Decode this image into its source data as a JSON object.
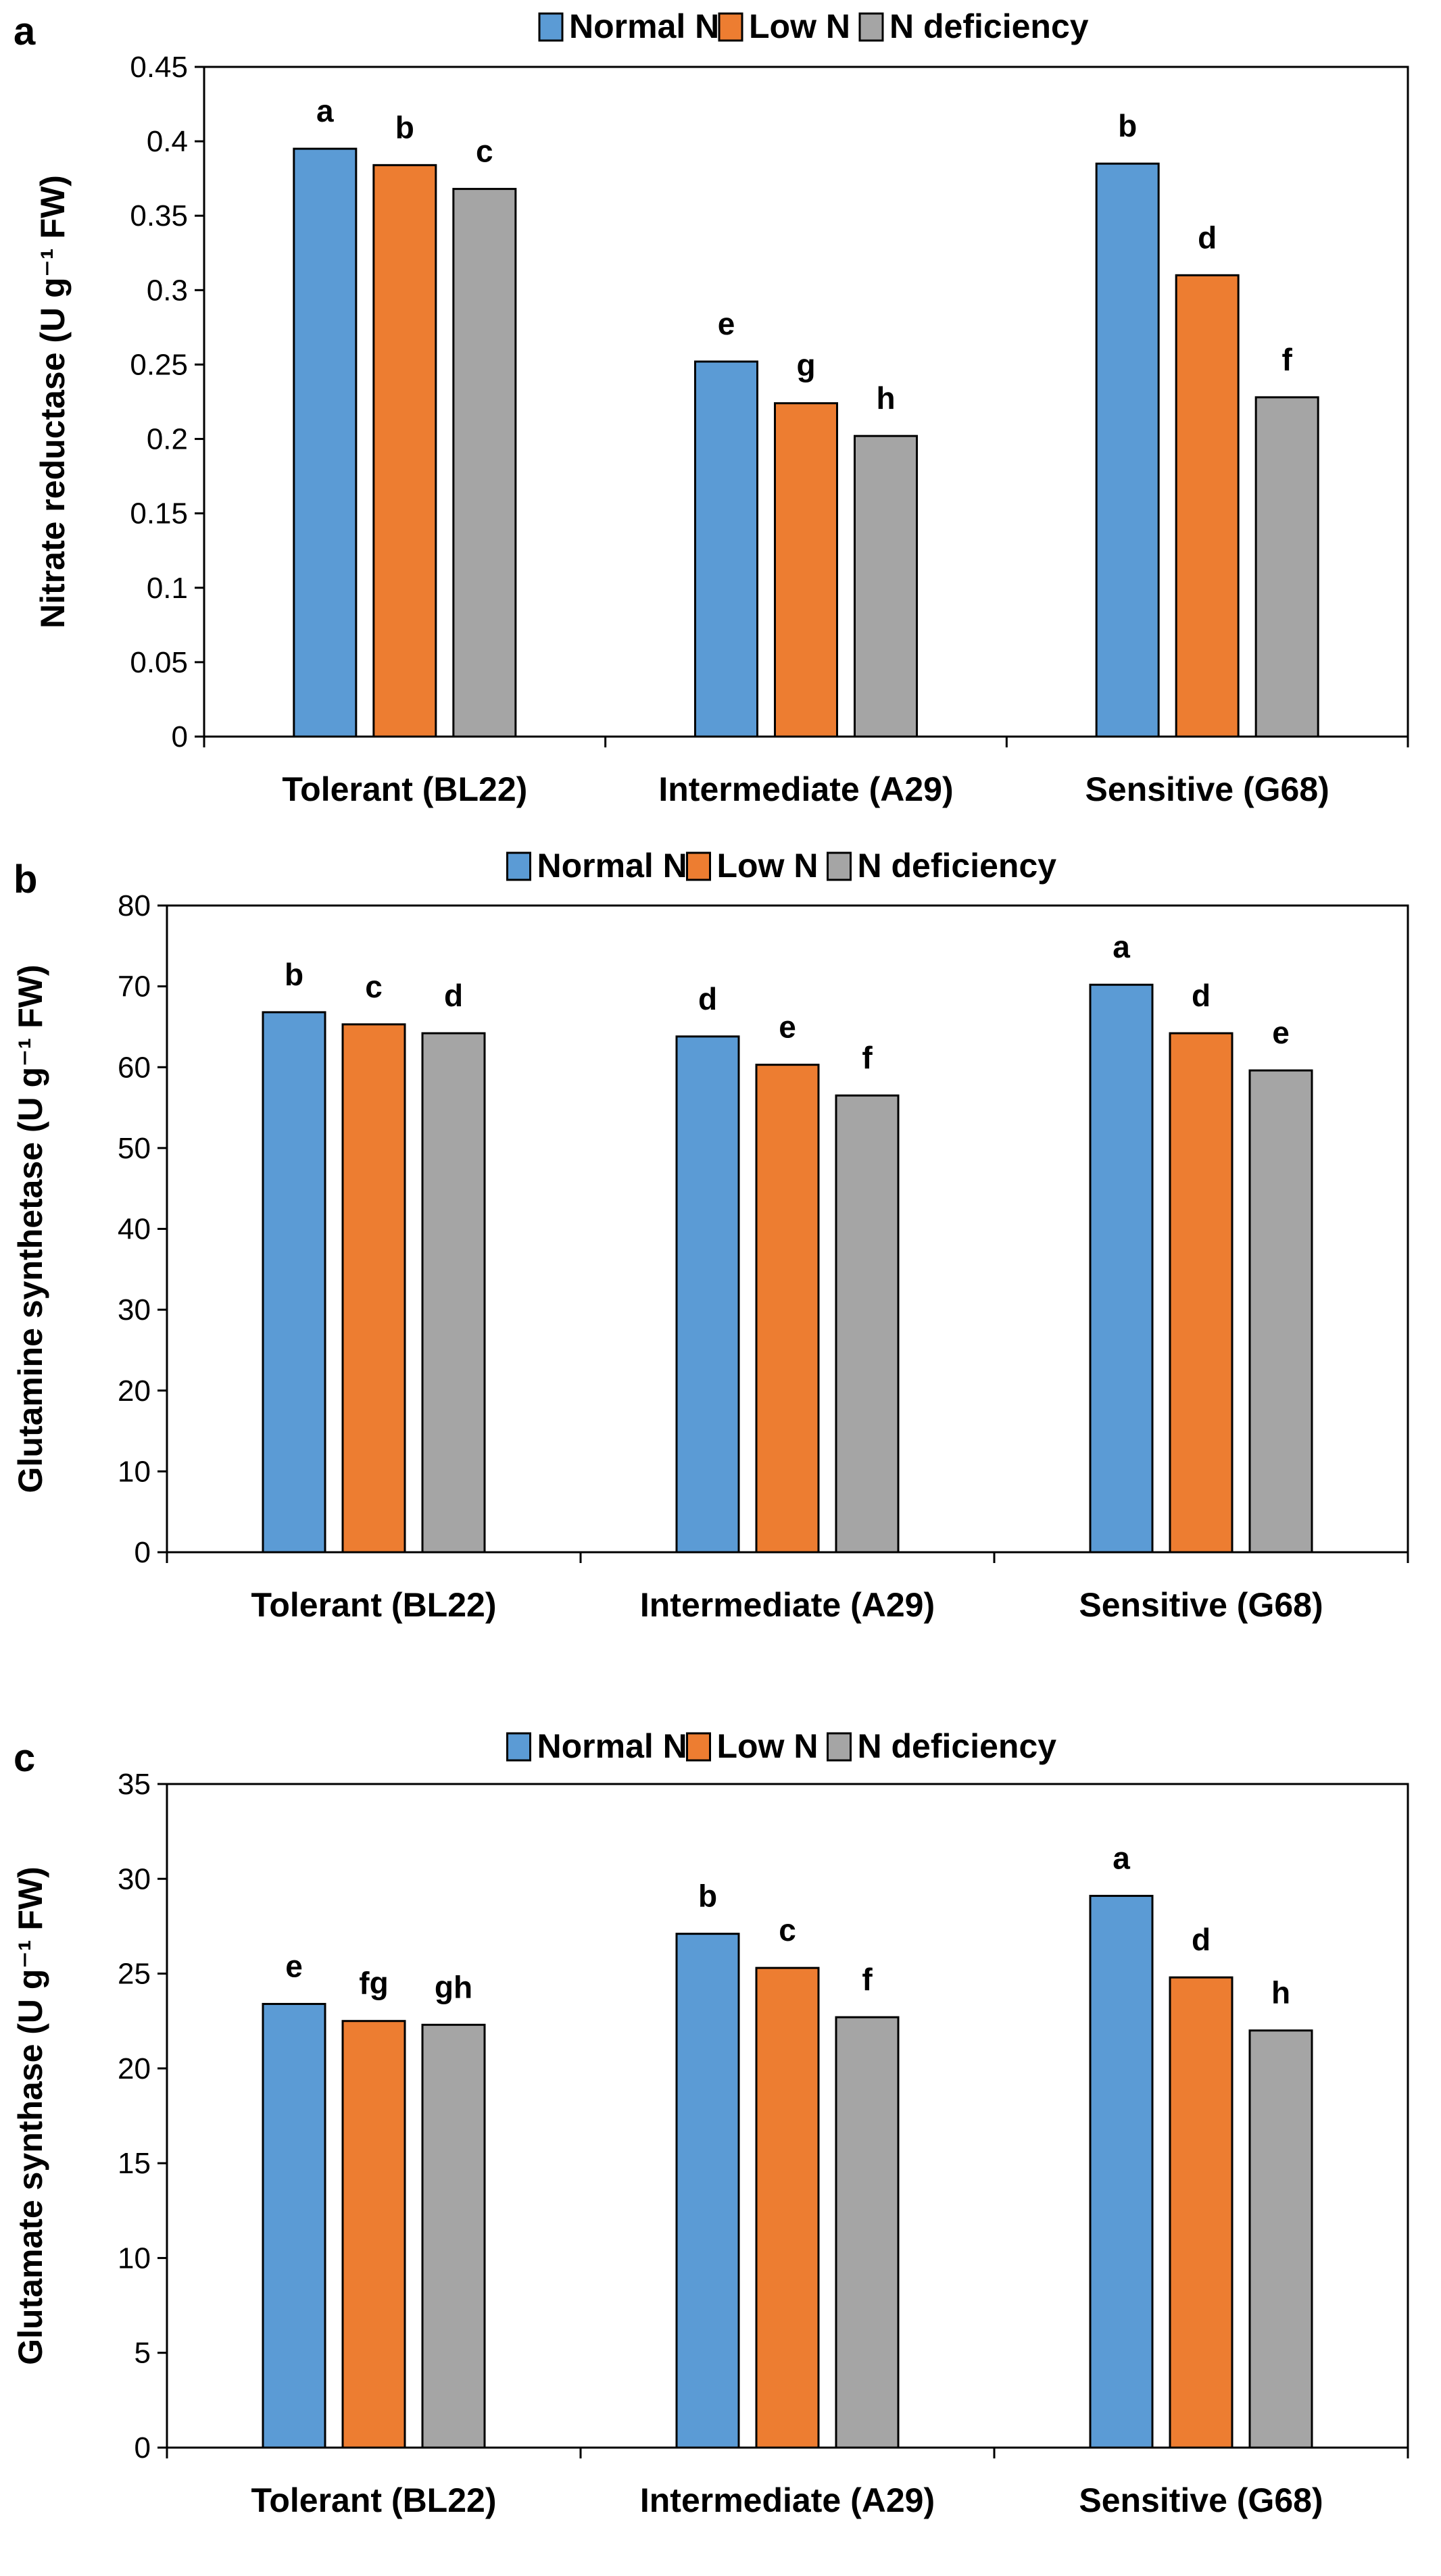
{
  "legend": [
    "Normal N",
    "Low N",
    "N deficiency"
  ],
  "colors": {
    "series": [
      "#5B9BD5",
      "#ED7D31",
      "#A5A5A5"
    ],
    "outline": "#000000",
    "axis": "#000000"
  },
  "chart_data": [
    {
      "panel_label": "a",
      "type": "bar",
      "categories": [
        "Tolerant (BL22)",
        "Intermediate (A29)",
        "Sensitive (G68)"
      ],
      "series": [
        {
          "name": "Normal N",
          "values": [
            0.395,
            0.252,
            0.385
          ],
          "letters": [
            "a",
            "e",
            "b"
          ]
        },
        {
          "name": "Low N",
          "values": [
            0.384,
            0.224,
            0.31
          ],
          "letters": [
            "b",
            "g",
            "d"
          ]
        },
        {
          "name": "N deficiency",
          "values": [
            0.368,
            0.202,
            0.228
          ],
          "letters": [
            "c",
            "h",
            "f"
          ]
        }
      ],
      "ylabel": "Nitrate reductase (U g⁻¹ FW)",
      "xlabel": "",
      "ylim": [
        0,
        0.45
      ],
      "yticks": [
        "0",
        "0.05",
        "0.1",
        "0.15",
        "0.2",
        "0.25",
        "0.3",
        "0.35",
        "0.4",
        "0.45"
      ],
      "legend_position": "top"
    },
    {
      "panel_label": "b",
      "type": "bar",
      "categories": [
        "Tolerant (BL22)",
        "Intermediate (A29)",
        "Sensitive (G68)"
      ],
      "series": [
        {
          "name": "Normal N",
          "values": [
            66.8,
            63.8,
            70.2
          ],
          "letters": [
            "b",
            "d",
            "a"
          ]
        },
        {
          "name": "Low N",
          "values": [
            65.3,
            60.3,
            64.2
          ],
          "letters": [
            "c",
            "e",
            "d"
          ]
        },
        {
          "name": "N deficiency",
          "values": [
            64.2,
            56.5,
            59.6
          ],
          "letters": [
            "d",
            "f",
            "e"
          ]
        }
      ],
      "ylabel": "Glutamine synthetase (U g⁻¹ FW)",
      "xlabel": "",
      "ylim": [
        0,
        80
      ],
      "yticks": [
        "0",
        "10",
        "20",
        "30",
        "40",
        "50",
        "60",
        "70",
        "80"
      ],
      "legend_position": "top"
    },
    {
      "panel_label": "c",
      "type": "bar",
      "categories": [
        "Tolerant (BL22)",
        "Intermediate (A29)",
        "Sensitive (G68)"
      ],
      "series": [
        {
          "name": "Normal N",
          "values": [
            23.4,
            27.1,
            29.1
          ],
          "letters": [
            "e",
            "b",
            "a"
          ]
        },
        {
          "name": "Low N",
          "values": [
            22.5,
            25.3,
            24.8
          ],
          "letters": [
            "fg",
            "c",
            "d"
          ]
        },
        {
          "name": "N deficiency",
          "values": [
            22.3,
            22.7,
            22.0
          ],
          "letters": [
            "gh",
            "f",
            "h"
          ]
        }
      ],
      "ylabel": "Glutamate synthase (U g⁻¹ FW)",
      "xlabel": "",
      "ylim": [
        0,
        35
      ],
      "yticks": [
        "0",
        "5",
        "10",
        "15",
        "20",
        "25",
        "30",
        "35"
      ],
      "legend_position": "top"
    }
  ]
}
